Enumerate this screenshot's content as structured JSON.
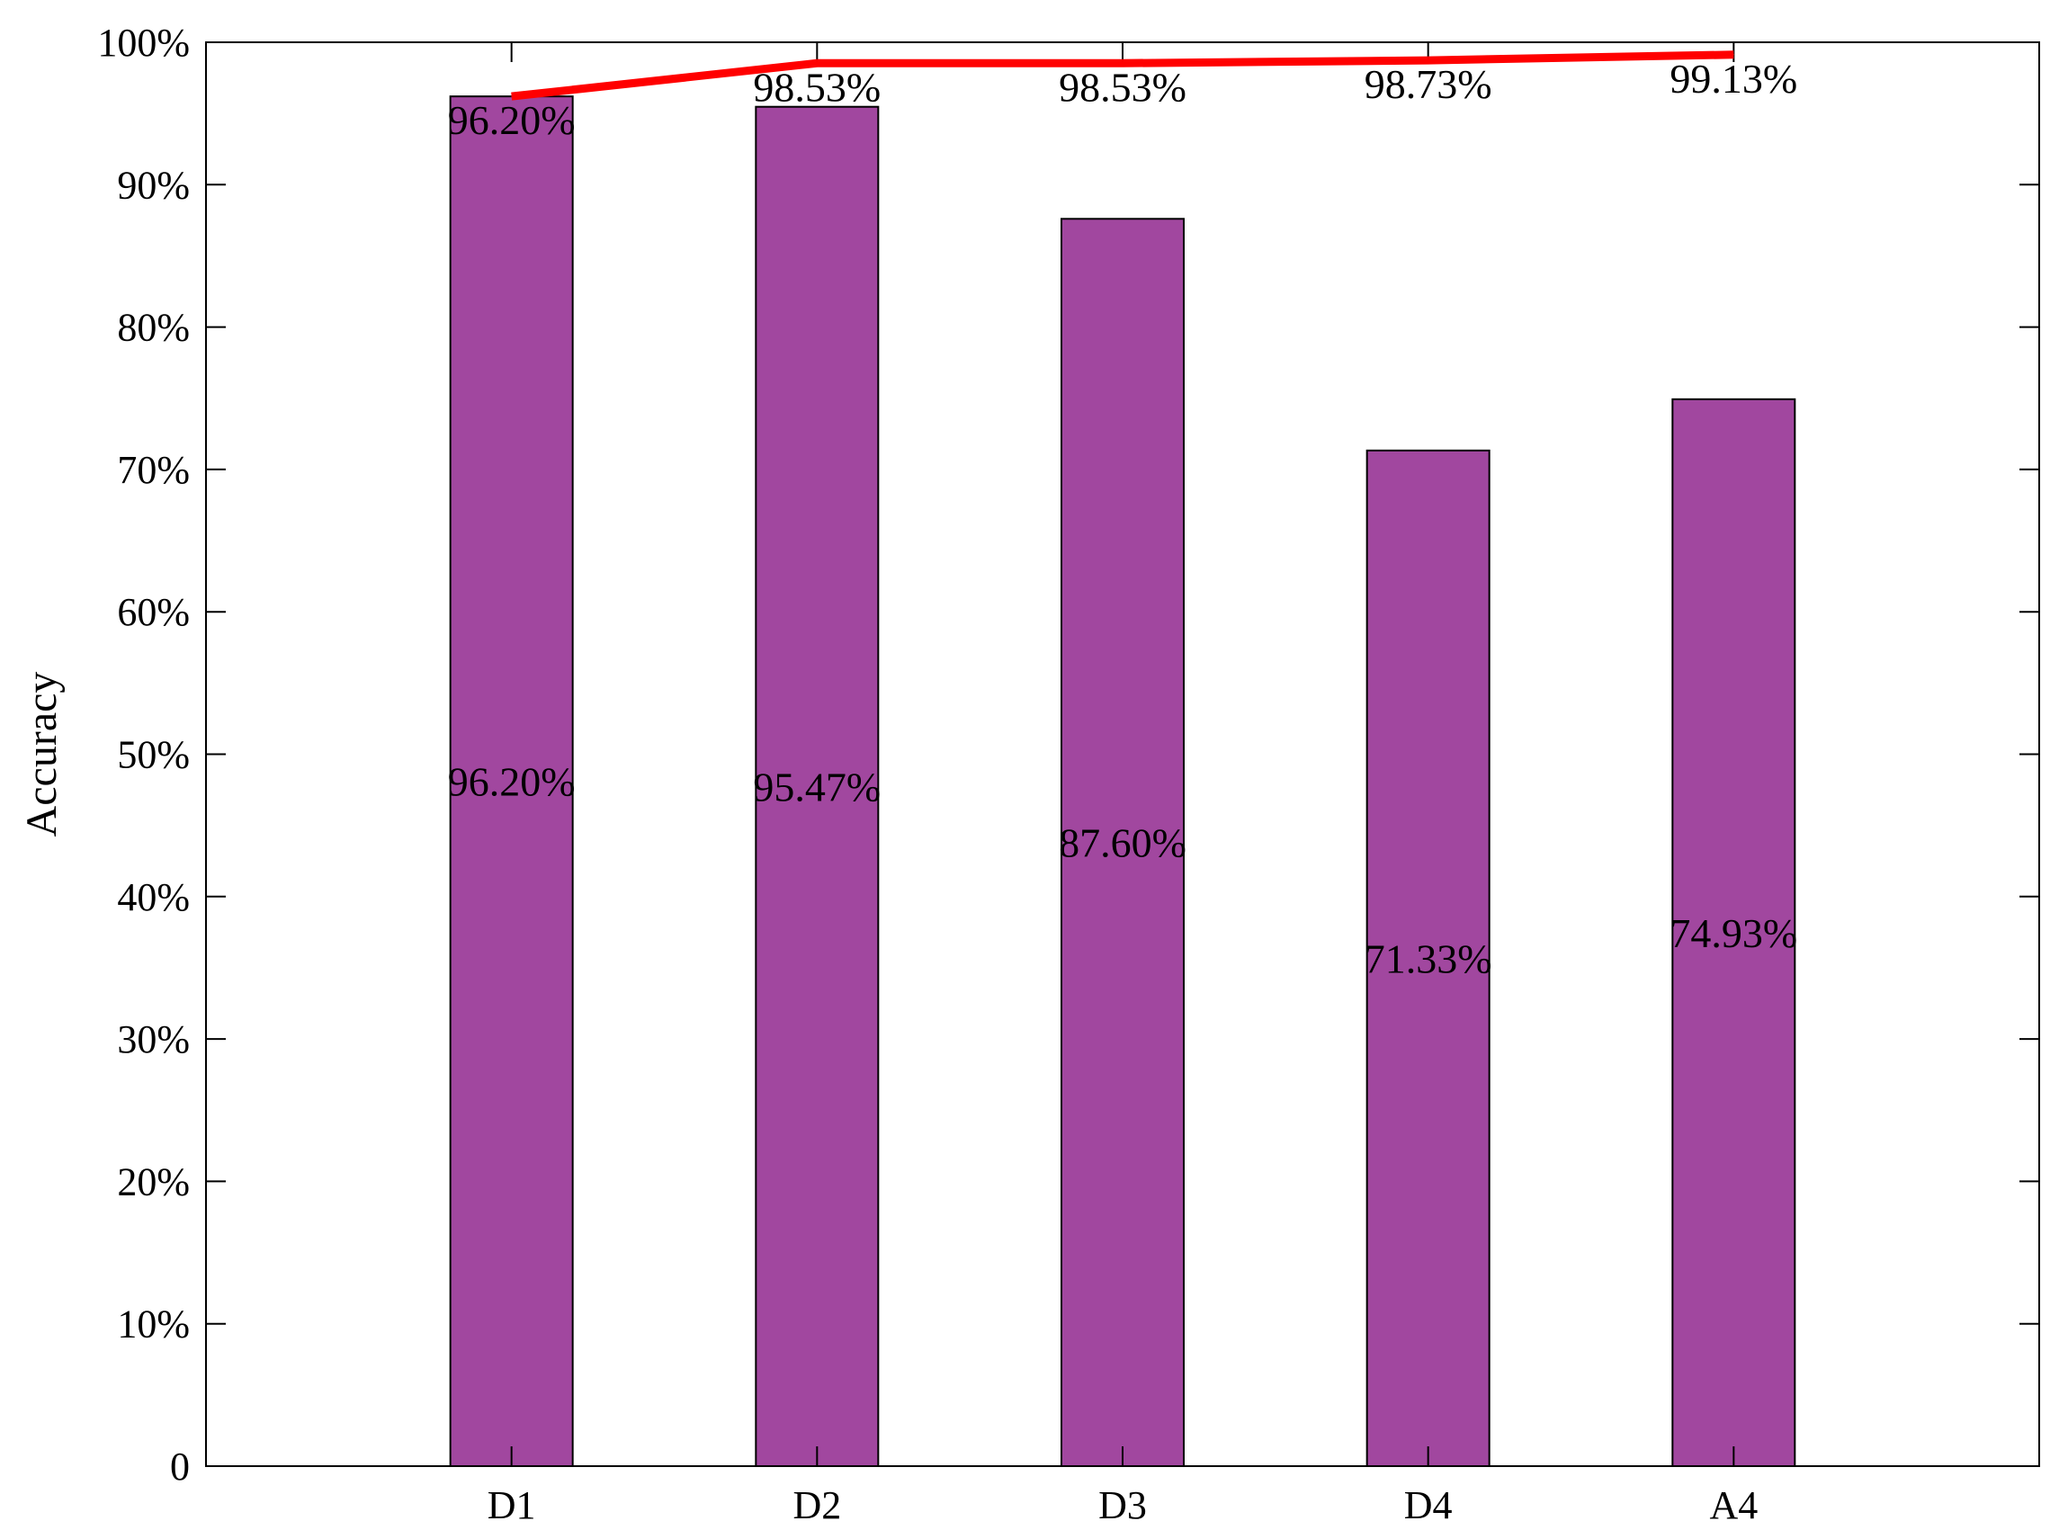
{
  "chart_data": {
    "type": "bar",
    "categories": [
      "D1",
      "D2",
      "D3",
      "D4",
      "A4"
    ],
    "series": [
      {
        "kind": "bar",
        "values": [
          96.2,
          95.47,
          87.6,
          71.33,
          74.93
        ],
        "labels": [
          "96.20%",
          "95.47%",
          "87.60%",
          "71.33%",
          "74.93%"
        ],
        "color": "#a1479f"
      },
      {
        "kind": "line",
        "values": [
          96.2,
          98.53,
          98.53,
          98.73,
          99.13
        ],
        "labels": [
          "96.20%",
          "98.53%",
          "98.53%",
          "98.73%",
          "99.13%"
        ],
        "color": "#ff0000"
      }
    ],
    "ylabel": "Accuracy",
    "xlabel": "",
    "ylim": [
      0,
      100
    ],
    "yticks": [
      0,
      10,
      20,
      30,
      40,
      50,
      60,
      70,
      80,
      90,
      100
    ],
    "ytick_labels": [
      "0",
      "10%",
      "20%",
      "30%",
      "40%",
      "50%",
      "60%",
      "70%",
      "80%",
      "90%",
      "100%"
    ],
    "grid": false,
    "legend": "none"
  }
}
